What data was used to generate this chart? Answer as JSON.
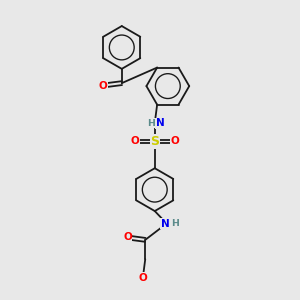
{
  "background_color": "#e8e8e8",
  "bond_color": "#1a1a1a",
  "atom_colors": {
    "O": "#ff0000",
    "N": "#0000ee",
    "S": "#cccc00",
    "H": "#5a8a8a",
    "C": "#1a1a1a"
  },
  "figsize": [
    3.0,
    3.0
  ],
  "dpi": 100
}
